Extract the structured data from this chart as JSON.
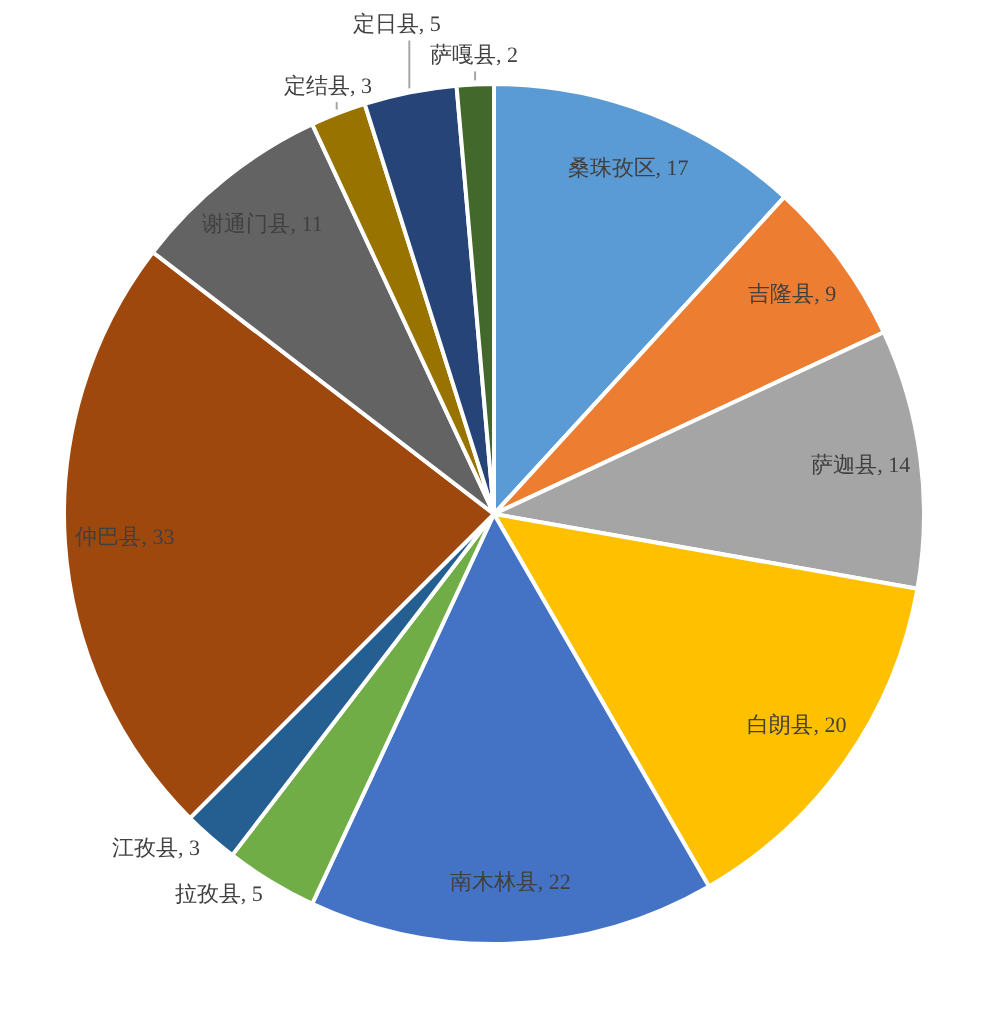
{
  "chart_data": {
    "type": "pie",
    "categories": [
      "桑珠孜区",
      "吉隆县",
      "萨迦县",
      "白朗县",
      "南木林县",
      "拉孜县",
      "江孜县",
      "仲巴县",
      "谢通门县",
      "定结县",
      "定日县",
      "萨嘎县"
    ],
    "values": [
      17,
      9,
      14,
      20,
      22,
      5,
      3,
      33,
      11,
      3,
      5,
      2
    ],
    "value_labels": [
      ", 17",
      ", 9",
      ", 14",
      ", 20",
      ", 22",
      ", 5",
      ", 3",
      ", 33",
      ", 11",
      ", 3",
      ", 5",
      ", 2"
    ],
    "colors": [
      "#5b9bd5",
      "#ed7d31",
      "#a5a5a5",
      "#ffc000",
      "#4472c4",
      "#70ad47",
      "#255e91",
      "#9e480e",
      "#636363",
      "#997300",
      "#264478",
      "#43682b"
    ],
    "legend": false
  }
}
